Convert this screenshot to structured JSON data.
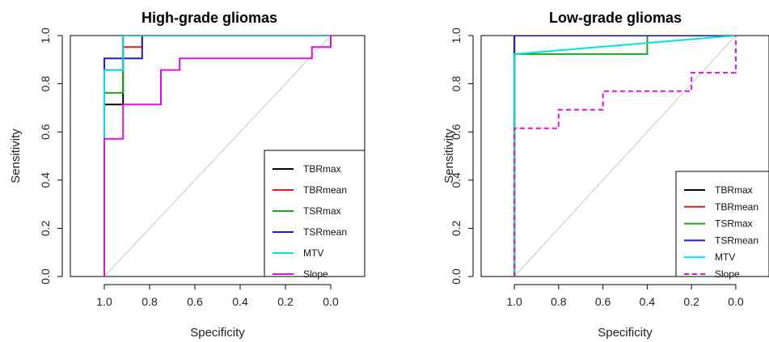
{
  "chart_data": [
    {
      "type": "line",
      "title": "High-grade gliomas",
      "xlabel": "Specificity",
      "ylabel": "Sensitivity",
      "x_reversed": true,
      "xlim": [
        1.15,
        -0.15
      ],
      "ylim": [
        0,
        1
      ],
      "xticks": [
        1.0,
        0.8,
        0.6,
        0.4,
        0.2,
        0.0
      ],
      "xtick_labels": [
        "1.0",
        "0.8",
        "0.6",
        "0.4",
        "0.2",
        "0.0"
      ],
      "yticks": [
        0.0,
        0.2,
        0.4,
        0.6,
        0.8,
        1.0
      ],
      "ytick_labels": [
        "0.0",
        "0.2",
        "0.4",
        "0.6",
        "0.8",
        "1.0"
      ],
      "legend_position": "bottom-right",
      "reference_line": {
        "from": [
          1.0,
          0.0
        ],
        "to": [
          0.0,
          1.0
        ],
        "color": "#c8c8c8"
      },
      "series": [
        {
          "name": "TBRmax",
          "color": "#000000",
          "dashed": false,
          "points": [
            [
              1.0,
              0.0
            ],
            [
              1.0,
              0.714
            ],
            [
              0.917,
              0.714
            ],
            [
              0.917,
              1.0
            ],
            [
              0.0,
              1.0
            ]
          ]
        },
        {
          "name": "TBRmean",
          "color": "#e41a1c",
          "dashed": false,
          "points": [
            [
              1.0,
              0.0
            ],
            [
              1.0,
              0.857
            ],
            [
              0.917,
              0.857
            ],
            [
              0.917,
              0.952
            ],
            [
              0.833,
              0.952
            ],
            [
              0.833,
              1.0
            ],
            [
              0.0,
              1.0
            ]
          ]
        },
        {
          "name": "TSRmax",
          "color": "#1aa81a",
          "dashed": false,
          "points": [
            [
              1.0,
              0.0
            ],
            [
              1.0,
              0.762
            ],
            [
              0.917,
              0.762
            ],
            [
              0.917,
              1.0
            ],
            [
              0.0,
              1.0
            ]
          ]
        },
        {
          "name": "TSRmean",
          "color": "#1c1cc8",
          "dashed": false,
          "points": [
            [
              1.0,
              0.0
            ],
            [
              1.0,
              0.905
            ],
            [
              0.833,
              0.905
            ],
            [
              0.833,
              1.0
            ],
            [
              0.0,
              1.0
            ]
          ]
        },
        {
          "name": "MTV",
          "color": "#00e0e0",
          "dashed": false,
          "points": [
            [
              1.0,
              0.0
            ],
            [
              1.0,
              0.857
            ],
            [
              0.917,
              0.857
            ],
            [
              0.917,
              1.0
            ],
            [
              0.0,
              1.0
            ]
          ]
        },
        {
          "name": "Slope",
          "color": "#e010e0",
          "dashed": false,
          "points": [
            [
              1.0,
              0.0
            ],
            [
              1.0,
              0.571
            ],
            [
              0.917,
              0.571
            ],
            [
              0.917,
              0.714
            ],
            [
              0.75,
              0.714
            ],
            [
              0.75,
              0.857
            ],
            [
              0.667,
              0.857
            ],
            [
              0.667,
              0.905
            ],
            [
              0.083,
              0.905
            ],
            [
              0.083,
              0.952
            ],
            [
              0.0,
              0.952
            ],
            [
              0.0,
              1.0
            ]
          ]
        }
      ]
    },
    {
      "type": "line",
      "title": "Low-grade gliomas",
      "xlabel": "Specificity",
      "ylabel": "Sensitivity",
      "x_reversed": true,
      "xlim": [
        1.15,
        -0.15
      ],
      "ylim": [
        0,
        1
      ],
      "xticks": [
        1.0,
        0.8,
        0.6,
        0.4,
        0.2,
        0.0
      ],
      "xtick_labels": [
        "1.0",
        "0.8",
        "0.6",
        "0.4",
        "0.2",
        "0.0"
      ],
      "yticks": [
        0.0,
        0.2,
        0.4,
        0.6,
        0.8,
        1.0
      ],
      "ytick_labels": [
        "0.0",
        "0.2",
        "0.4",
        "0.6",
        "0.8",
        "1.0"
      ],
      "legend_position": "bottom-right",
      "reference_line": {
        "from": [
          1.0,
          0.0
        ],
        "to": [
          0.0,
          1.0
        ],
        "color": "#c8c8c8"
      },
      "series": [
        {
          "name": "TBRmax",
          "color": "#000000",
          "dashed": false,
          "points": [
            [
              1.0,
              0.0
            ],
            [
              1.0,
              1.0
            ],
            [
              0.0,
              1.0
            ]
          ]
        },
        {
          "name": "TBRmean",
          "color": "#e41a1c",
          "dashed": false,
          "points": [
            [
              1.0,
              0.0
            ],
            [
              1.0,
              1.0
            ],
            [
              0.0,
              1.0
            ]
          ]
        },
        {
          "name": "TSRmax",
          "color": "#1aa81a",
          "dashed": false,
          "points": [
            [
              1.0,
              0.0
            ],
            [
              1.0,
              0.923
            ],
            [
              0.4,
              0.923
            ],
            [
              0.4,
              1.0
            ],
            [
              0.0,
              1.0
            ]
          ]
        },
        {
          "name": "TSRmean",
          "color": "#1c1cc8",
          "dashed": false,
          "points": [
            [
              1.0,
              0.0
            ],
            [
              1.0,
              1.0
            ],
            [
              0.0,
              1.0
            ]
          ]
        },
        {
          "name": "MTV",
          "color": "#00e0e0",
          "dashed": false,
          "points": [
            [
              1.0,
              0.0
            ],
            [
              1.0,
              0.923
            ],
            [
              0.0,
              1.0
            ]
          ]
        },
        {
          "name": "Slope",
          "color": "#e010e0",
          "dashed": true,
          "points": [
            [
              1.0,
              0.0
            ],
            [
              1.0,
              0.615
            ],
            [
              0.8,
              0.615
            ],
            [
              0.8,
              0.692
            ],
            [
              0.6,
              0.692
            ],
            [
              0.6,
              0.769
            ],
            [
              0.2,
              0.769
            ],
            [
              0.2,
              0.846
            ],
            [
              0.0,
              0.846
            ],
            [
              0.0,
              1.0
            ]
          ]
        }
      ]
    }
  ]
}
